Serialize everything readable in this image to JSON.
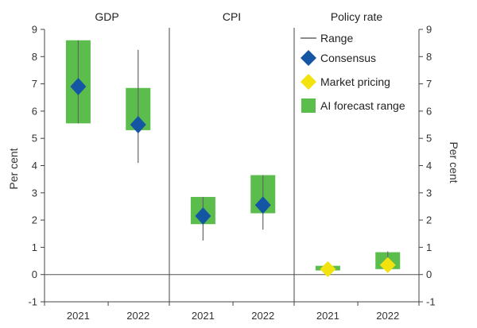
{
  "chart_data": {
    "type": "range-marker",
    "ylabel_left": "Per cent",
    "ylabel_right": "Per cent",
    "ylim": [
      -1,
      9
    ],
    "yticks": [
      -1,
      0,
      1,
      2,
      3,
      4,
      5,
      6,
      7,
      8,
      9
    ],
    "grid": false,
    "legend_position": "top-right",
    "colors": {
      "ai_range": "#5BBD4C",
      "range_line": "#666666",
      "consensus": "#1556A4",
      "market": "#F2E20E"
    },
    "legend": [
      {
        "key": "range",
        "label": "Range"
      },
      {
        "key": "consensus",
        "label": "Consensus"
      },
      {
        "key": "market",
        "label": "Market pricing"
      },
      {
        "key": "ai",
        "label": "AI forecast range"
      }
    ],
    "panels": [
      {
        "title": "GDP",
        "categories": [
          "2021",
          "2022"
        ],
        "ai_range": [
          [
            5.55,
            8.6
          ],
          [
            5.3,
            6.85
          ]
        ],
        "range": [
          [
            5.55,
            8.6
          ],
          [
            4.1,
            8.25
          ]
        ],
        "consensus": [
          6.9,
          5.5
        ],
        "market": [
          null,
          null
        ]
      },
      {
        "title": "CPI",
        "categories": [
          "2021",
          "2022"
        ],
        "ai_range": [
          [
            1.85,
            2.85
          ],
          [
            2.25,
            3.65
          ]
        ],
        "range": [
          [
            1.25,
            2.85
          ],
          [
            1.65,
            3.65
          ]
        ],
        "consensus": [
          2.15,
          2.55
        ],
        "market": [
          null,
          null
        ]
      },
      {
        "title": "Policy rate",
        "categories": [
          "2021",
          "2022"
        ],
        "ai_range": [
          [
            0.15,
            0.32
          ],
          [
            0.2,
            0.82
          ]
        ],
        "range": [
          [
            0.05,
            0.35
          ],
          [
            0.15,
            0.85
          ]
        ],
        "consensus": [
          null,
          null
        ],
        "market": [
          0.2,
          0.35
        ]
      }
    ]
  }
}
